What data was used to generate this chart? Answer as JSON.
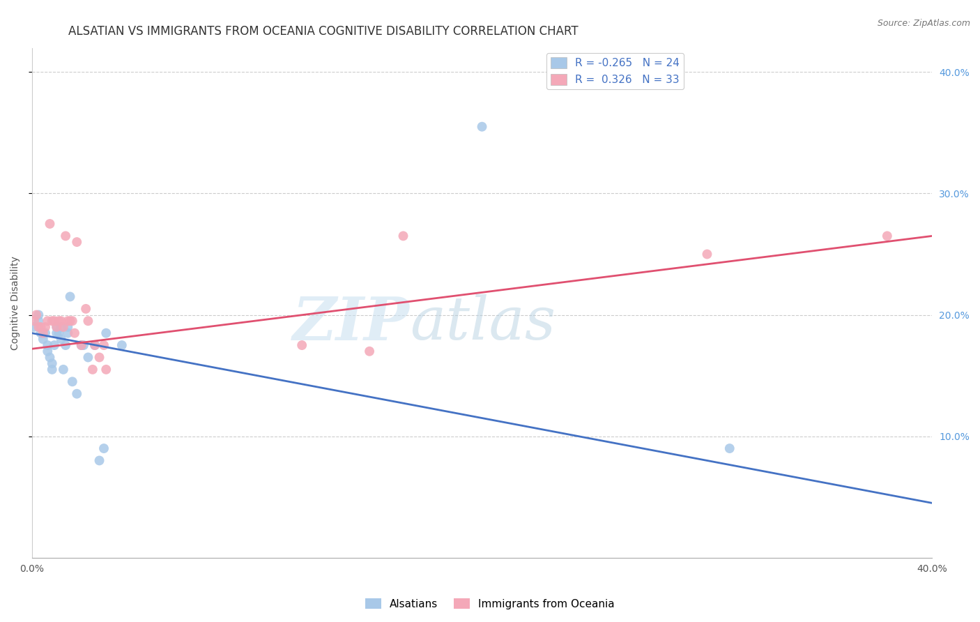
{
  "title": "ALSATIAN VS IMMIGRANTS FROM OCEANIA COGNITIVE DISABILITY CORRELATION CHART",
  "source": "Source: ZipAtlas.com",
  "ylabel": "Cognitive Disability",
  "xlim": [
    0.0,
    0.4
  ],
  "ylim": [
    0.0,
    0.42
  ],
  "yticks": [
    0.1,
    0.2,
    0.3,
    0.4
  ],
  "right_ytick_labels": [
    "10.0%",
    "20.0%",
    "30.0%",
    "40.0%"
  ],
  "blue_scatter_color": "#a8c8e8",
  "pink_scatter_color": "#f4a8b8",
  "blue_line_color": "#4472c4",
  "pink_line_color": "#e05070",
  "watermark_zip": "ZIP",
  "watermark_atlas": "atlas",
  "alsatians_x": [
    0.001,
    0.003,
    0.003,
    0.004,
    0.005,
    0.006,
    0.007,
    0.007,
    0.008,
    0.009,
    0.009,
    0.01,
    0.011,
    0.011,
    0.012,
    0.013,
    0.013,
    0.014,
    0.015,
    0.016,
    0.016,
    0.017,
    0.018,
    0.02,
    0.022,
    0.023,
    0.025,
    0.028,
    0.03,
    0.032,
    0.033,
    0.04,
    0.2,
    0.31
  ],
  "alsatians_y": [
    0.19,
    0.2,
    0.195,
    0.185,
    0.18,
    0.185,
    0.175,
    0.17,
    0.165,
    0.16,
    0.155,
    0.175,
    0.19,
    0.185,
    0.185,
    0.18,
    0.19,
    0.155,
    0.175,
    0.19,
    0.185,
    0.215,
    0.145,
    0.135,
    0.175,
    0.175,
    0.165,
    0.175,
    0.08,
    0.09,
    0.185,
    0.175,
    0.355,
    0.09
  ],
  "oceania_x": [
    0.001,
    0.002,
    0.003,
    0.004,
    0.005,
    0.006,
    0.007,
    0.008,
    0.009,
    0.01,
    0.011,
    0.012,
    0.013,
    0.014,
    0.015,
    0.016,
    0.017,
    0.018,
    0.019,
    0.02,
    0.022,
    0.024,
    0.025,
    0.027,
    0.028,
    0.03,
    0.032,
    0.033,
    0.12,
    0.15,
    0.165,
    0.3,
    0.38
  ],
  "oceania_y": [
    0.195,
    0.2,
    0.19,
    0.19,
    0.185,
    0.19,
    0.195,
    0.275,
    0.195,
    0.195,
    0.19,
    0.195,
    0.195,
    0.19,
    0.265,
    0.195,
    0.195,
    0.195,
    0.185,
    0.26,
    0.175,
    0.205,
    0.195,
    0.155,
    0.175,
    0.165,
    0.175,
    0.155,
    0.175,
    0.17,
    0.265,
    0.25,
    0.265
  ],
  "blue_trend_x": [
    0.0,
    0.4
  ],
  "blue_trend_y": [
    0.185,
    0.045
  ],
  "pink_trend_x": [
    0.0,
    0.4
  ],
  "pink_trend_y": [
    0.172,
    0.265
  ],
  "background_color": "#ffffff",
  "grid_color": "#cccccc",
  "title_fontsize": 12,
  "axis_label_fontsize": 10,
  "tick_fontsize": 10,
  "marker_size": 100
}
